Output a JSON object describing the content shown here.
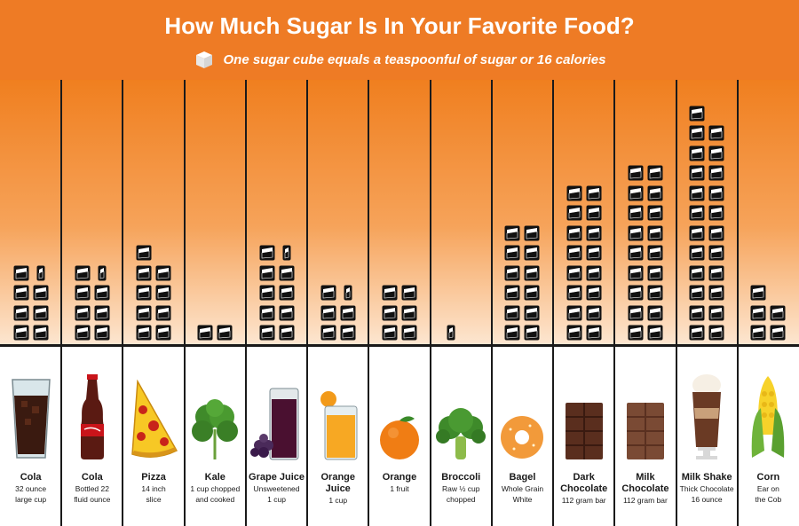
{
  "header": {
    "title": "How Much Sugar Is In Your Favorite Food?",
    "subtitle": "One sugar cube equals a teaspoonful of sugar or 16 calories"
  },
  "colors": {
    "header_orange": "#ee7b25",
    "column_gradient_top": "#f07f1f",
    "column_gradient_bottom": "#fde7d2",
    "cube_dark": "#111111",
    "cube_light": "#ffffff"
  },
  "foods": [
    {
      "name": "Cola",
      "desc": "32 ounce\nlarge cup",
      "cubes": 7.5,
      "icon": "cola-glass-icon"
    },
    {
      "name": "Cola",
      "desc": "Bottled 22\nfluid ounce",
      "cubes": 7.5,
      "icon": "cola-bottle-icon"
    },
    {
      "name": "Pizza",
      "desc": "14 inch\nslice",
      "cubes": 9,
      "icon": "pizza-slice-icon"
    },
    {
      "name": "Kale",
      "desc": "1 cup chopped\nand cooked",
      "cubes": 2,
      "icon": "kale-icon"
    },
    {
      "name": "Grape Juice",
      "desc": "Unsweetened\n1 cup",
      "cubes": 9.5,
      "icon": "grape-juice-icon"
    },
    {
      "name": "Orange Juice",
      "desc": "1 cup",
      "cubes": 5.5,
      "icon": "orange-juice-icon"
    },
    {
      "name": "Orange",
      "desc": "1 fruit",
      "cubes": 6,
      "icon": "orange-icon"
    },
    {
      "name": "Broccoli",
      "desc": "Raw ½ cup\nchopped",
      "cubes": 0.5,
      "icon": "broccoli-icon"
    },
    {
      "name": "Bagel",
      "desc": "Whole Grain\nWhite",
      "cubes": 12,
      "icon": "bagel-icon"
    },
    {
      "name": "Dark\nChocolate",
      "desc": "112 gram bar",
      "cubes": 16,
      "icon": "dark-chocolate-icon"
    },
    {
      "name": "Milk\nChocolate",
      "desc": "112 gram bar",
      "cubes": 18,
      "icon": "milk-chocolate-icon"
    },
    {
      "name": "Milk Shake",
      "desc": "Thick Chocolate\n16 ounce",
      "cubes": 23,
      "icon": "milkshake-icon"
    },
    {
      "name": "Corn",
      "desc": "Ear on\nthe Cob",
      "cubes": 5,
      "icon": "corn-icon"
    }
  ]
}
